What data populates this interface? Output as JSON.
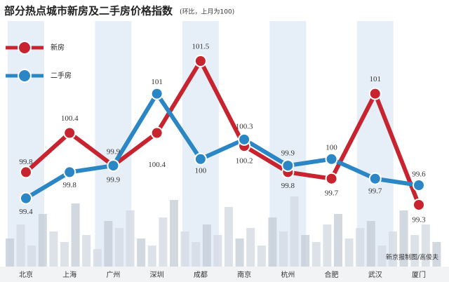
{
  "chart_data": {
    "type": "line",
    "title": "部分热点城市新房及二手房价格指数",
    "subtitle": "(环比，上月为100)",
    "credit": "新京报制图/高俊夫",
    "categories": [
      "北京",
      "上海",
      "广州",
      "深圳",
      "成都",
      "南京",
      "杭州",
      "合肥",
      "武汉",
      "厦门"
    ],
    "series": [
      {
        "name": "新房",
        "color": "#c8242f",
        "values": [
          99.8,
          100.4,
          99.9,
          100.4,
          101.5,
          100.2,
          99.8,
          99.7,
          101,
          99.3
        ]
      },
      {
        "name": "二手房",
        "color": "#2b86c5",
        "values": [
          99.4,
          99.8,
          99.9,
          101,
          100,
          100.3,
          99.9,
          100,
          99.7,
          99.6
        ]
      }
    ]
  }
}
